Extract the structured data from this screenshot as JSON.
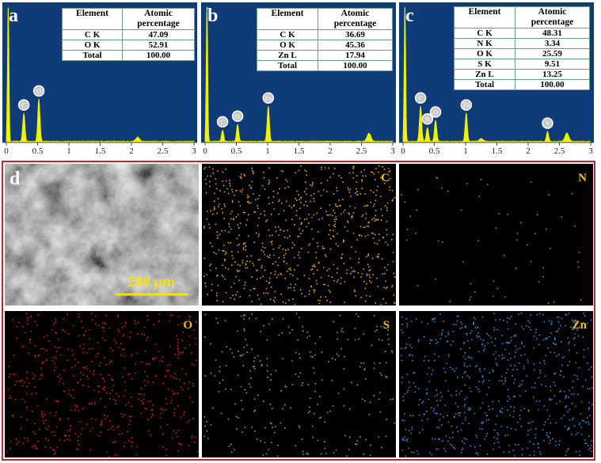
{
  "panels": [
    {
      "label": "a",
      "table": {
        "header": [
          "Element",
          "Atomic percentage"
        ],
        "rows": [
          [
            "C K",
            "47.09"
          ],
          [
            "O K",
            "52.91"
          ],
          [
            "Total",
            "100.00"
          ]
        ]
      },
      "peaks": [
        "C",
        "O"
      ]
    },
    {
      "label": "b",
      "table": {
        "header": [
          "Element",
          "Atomic percentage"
        ],
        "rows": [
          [
            "C K",
            "36.69"
          ],
          [
            "O K",
            "45.36"
          ],
          [
            "Zn L",
            "17.94"
          ],
          [
            "Total",
            "100.00"
          ]
        ]
      },
      "peaks": [
        "C",
        "O",
        "Zn"
      ]
    },
    {
      "label": "c",
      "table": {
        "header": [
          "Element",
          "Atomic percentage"
        ],
        "rows": [
          [
            "C K",
            "48.31"
          ],
          [
            "N K",
            "3.34"
          ],
          [
            "O K",
            "25.59"
          ],
          [
            "S K",
            "9.51"
          ],
          [
            "Zn L",
            "13.25"
          ],
          [
            "Total",
            "100.00"
          ]
        ]
      },
      "peaks": [
        "C",
        "N",
        "O",
        "Zn",
        "S"
      ]
    }
  ],
  "x_ticks": [
    "0",
    "0.5",
    "1",
    "1.5",
    "2",
    "2.5",
    "3"
  ],
  "maps": {
    "label": "d",
    "scale_bar": "200 µm",
    "elements": [
      "C",
      "N",
      "O",
      "S",
      "Zn"
    ]
  }
}
